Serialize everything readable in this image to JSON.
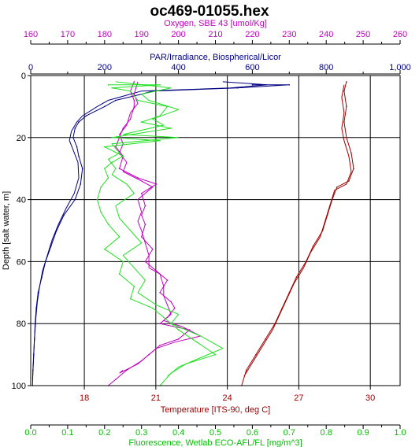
{
  "chart_data": {
    "type": "line",
    "title": "oc469-01055.hex",
    "grid": true,
    "y_axis": {
      "label": "Depth [salt water, m]",
      "range": [
        0,
        100
      ],
      "inverted": true,
      "ticks": [
        "0",
        "20",
        "40",
        "60",
        "80",
        "100"
      ],
      "tick_values": [
        0,
        20,
        40,
        60,
        80,
        100
      ]
    },
    "x_axes": [
      {
        "id": "oxygen",
        "label": "Oxygen, SBE 43 [umol/Kg]",
        "position": "top",
        "color": "#c000c0",
        "range": [
          160,
          260
        ],
        "ticks": [
          "160",
          "170",
          "180",
          "190",
          "200",
          "210",
          "220",
          "230",
          "240",
          "250",
          "260"
        ],
        "tick_values": [
          160,
          170,
          180,
          190,
          200,
          210,
          220,
          230,
          240,
          250,
          260
        ]
      },
      {
        "id": "par",
        "label": "PAR/Irradiance, Biospherical/Licor",
        "position": "top",
        "color": "#000080",
        "range": [
          0,
          1000
        ],
        "ticks": [
          "0",
          "200",
          "400",
          "600",
          "800",
          "1,000"
        ],
        "tick_values": [
          0,
          200,
          400,
          600,
          800,
          1000
        ]
      },
      {
        "id": "temperature",
        "label": "Temperature [ITS-90, deg C]",
        "position": "bottom",
        "color": "#a00000",
        "range": [
          15.75,
          31.25
        ],
        "ticks": [
          "18",
          "21",
          "24",
          "27",
          "30"
        ],
        "tick_values": [
          18,
          21,
          24,
          27,
          30
        ]
      },
      {
        "id": "fluorescence",
        "label": "Fluorescence, Wetlab ECO-AFL/FL [mg/m^3]",
        "position": "bottom",
        "color": "#00c000",
        "range": [
          0,
          1
        ],
        "ticks": [
          "0.0",
          "0.1",
          "0.2",
          "0.3",
          "0.4",
          "0.5",
          "0.6",
          "0.7",
          "0.8",
          "0.9",
          "1.0"
        ],
        "tick_values": [
          0,
          0.1,
          0.2,
          0.3,
          0.4,
          0.5,
          0.6,
          0.7,
          0.8,
          0.9,
          1.0
        ]
      }
    ],
    "series": [
      {
        "axis": "par",
        "color": "#000080",
        "points": [
          [
            600,
            3
          ],
          [
            700,
            3
          ],
          [
            560,
            4
          ],
          [
            330,
            5
          ],
          [
            300,
            6
          ],
          [
            230,
            8
          ],
          [
            200,
            10
          ],
          [
            150,
            13
          ],
          [
            130,
            15
          ],
          [
            120,
            17
          ],
          [
            115,
            20
          ],
          [
            125,
            23
          ],
          [
            130,
            26
          ],
          [
            140,
            30
          ],
          [
            135,
            35
          ],
          [
            120,
            40
          ],
          [
            90,
            45
          ],
          [
            70,
            50
          ],
          [
            55,
            55
          ],
          [
            40,
            60
          ],
          [
            30,
            65
          ],
          [
            20,
            70
          ],
          [
            15,
            75
          ],
          [
            12,
            80
          ],
          [
            10,
            85
          ],
          [
            8,
            90
          ],
          [
            6,
            95
          ],
          [
            5,
            100
          ]
        ],
        "points_alt": [
          [
            520,
            2
          ],
          [
            640,
            3
          ],
          [
            540,
            4
          ],
          [
            300,
            5
          ],
          [
            270,
            6
          ],
          [
            210,
            8
          ],
          [
            180,
            10
          ],
          [
            140,
            13
          ],
          [
            125,
            15
          ],
          [
            110,
            18
          ],
          [
            105,
            21
          ],
          [
            115,
            24
          ],
          [
            128,
            28
          ],
          [
            130,
            33
          ],
          [
            118,
            38
          ],
          [
            95,
            43
          ],
          [
            75,
            48
          ],
          [
            58,
            53
          ],
          [
            45,
            58
          ],
          [
            32,
            63
          ],
          [
            24,
            68
          ],
          [
            18,
            73
          ],
          [
            14,
            78
          ],
          [
            11,
            83
          ],
          [
            9,
            88
          ],
          [
            7,
            93
          ],
          [
            5,
            98
          ]
        ]
      },
      {
        "axis": "oxygen",
        "color": "#c000c0",
        "points": [
          [
            188,
            2
          ],
          [
            187,
            5
          ],
          [
            188,
            8
          ],
          [
            188,
            10
          ],
          [
            187,
            14
          ],
          [
            185,
            17
          ],
          [
            184,
            20
          ],
          [
            183,
            23
          ],
          [
            185,
            26
          ],
          [
            184,
            30
          ],
          [
            189,
            33
          ],
          [
            194,
            35
          ],
          [
            190,
            38
          ],
          [
            191,
            42
          ],
          [
            190,
            45
          ],
          [
            191,
            48
          ],
          [
            190,
            52
          ],
          [
            193,
            56
          ],
          [
            191,
            60
          ],
          [
            194,
            63
          ],
          [
            197,
            66
          ],
          [
            195,
            70
          ],
          [
            198,
            73
          ],
          [
            199,
            75
          ],
          [
            197,
            78
          ],
          [
            195,
            80
          ],
          [
            203,
            82
          ],
          [
            200,
            85
          ],
          [
            195,
            87
          ],
          [
            192,
            90
          ],
          [
            190,
            92
          ],
          [
            186,
            95
          ],
          [
            183,
            98
          ],
          [
            181,
            100
          ]
        ],
        "points_alt": [
          [
            189,
            2
          ],
          [
            188,
            6
          ],
          [
            189,
            9
          ],
          [
            187,
            12
          ],
          [
            186,
            16
          ],
          [
            184,
            19
          ],
          [
            185,
            22
          ],
          [
            184,
            25
          ],
          [
            186,
            28
          ],
          [
            185,
            31
          ],
          [
            190,
            34
          ],
          [
            193,
            36
          ],
          [
            189,
            40
          ],
          [
            190,
            44
          ],
          [
            189,
            47
          ],
          [
            190,
            50
          ],
          [
            191,
            54
          ],
          [
            192,
            58
          ],
          [
            192,
            62
          ],
          [
            195,
            64
          ],
          [
            196,
            68
          ],
          [
            196,
            71
          ],
          [
            197,
            74
          ],
          [
            198,
            77
          ],
          [
            196,
            79
          ],
          [
            201,
            81
          ],
          [
            206,
            84
          ],
          [
            199,
            86
          ],
          [
            194,
            88
          ],
          [
            191,
            91
          ],
          [
            189,
            93
          ],
          [
            184,
            96
          ],
          [
            185,
            95
          ]
        ]
      },
      {
        "axis": "fluorescence",
        "color": "#20e020",
        "points": [
          [
            0.21,
            3
          ],
          [
            0.35,
            3
          ],
          [
            0.22,
            4
          ],
          [
            0.27,
            5
          ],
          [
            0.29,
            8
          ],
          [
            0.37,
            10
          ],
          [
            0.35,
            13
          ],
          [
            0.3,
            15
          ],
          [
            0.38,
            17
          ],
          [
            0.22,
            20
          ],
          [
            0.35,
            21
          ],
          [
            0.2,
            23
          ],
          [
            0.25,
            26
          ],
          [
            0.22,
            28
          ],
          [
            0.2,
            30
          ],
          [
            0.21,
            33
          ],
          [
            0.19,
            36
          ],
          [
            0.18,
            40
          ],
          [
            0.19,
            44
          ],
          [
            0.21,
            48
          ],
          [
            0.24,
            52
          ],
          [
            0.2,
            56
          ],
          [
            0.25,
            60
          ],
          [
            0.24,
            64
          ],
          [
            0.28,
            68
          ],
          [
            0.27,
            72
          ],
          [
            0.33,
            75
          ],
          [
            0.36,
            78
          ],
          [
            0.4,
            82
          ],
          [
            0.45,
            86
          ],
          [
            0.5,
            90
          ],
          [
            0.42,
            93
          ],
          [
            0.38,
            96
          ],
          [
            0.35,
            100
          ]
        ],
        "points_alt": [
          [
            0.23,
            2
          ],
          [
            0.38,
            4
          ],
          [
            0.3,
            6
          ],
          [
            0.32,
            8
          ],
          [
            0.4,
            11
          ],
          [
            0.33,
            14
          ],
          [
            0.36,
            16
          ],
          [
            0.25,
            19
          ],
          [
            0.4,
            20
          ],
          [
            0.22,
            22
          ],
          [
            0.24,
            25
          ],
          [
            0.21,
            27
          ],
          [
            0.23,
            30
          ],
          [
            0.22,
            32
          ],
          [
            0.26,
            35
          ],
          [
            0.28,
            38
          ],
          [
            0.23,
            42
          ],
          [
            0.24,
            46
          ],
          [
            0.27,
            50
          ],
          [
            0.3,
            54
          ],
          [
            0.25,
            58
          ],
          [
            0.28,
            62
          ],
          [
            0.31,
            66
          ],
          [
            0.29,
            70
          ],
          [
            0.34,
            74
          ],
          [
            0.4,
            77
          ],
          [
            0.38,
            80
          ],
          [
            0.46,
            84
          ],
          [
            0.52,
            88
          ],
          [
            0.46,
            91
          ],
          [
            0.4,
            94
          ],
          [
            0.37,
            97
          ]
        ]
      },
      {
        "axis": "temperature",
        "color": "#a00000",
        "points": [
          [
            29.0,
            2
          ],
          [
            28.9,
            5
          ],
          [
            29.0,
            10
          ],
          [
            28.9,
            15
          ],
          [
            29.0,
            20
          ],
          [
            29.2,
            25
          ],
          [
            29.3,
            30
          ],
          [
            29.1,
            34
          ],
          [
            28.6,
            36
          ],
          [
            28.4,
            40
          ],
          [
            28.2,
            45
          ],
          [
            28.0,
            50
          ],
          [
            27.6,
            55
          ],
          [
            27.3,
            60
          ],
          [
            26.9,
            65
          ],
          [
            26.6,
            70
          ],
          [
            26.3,
            75
          ],
          [
            26.0,
            80
          ],
          [
            25.6,
            85
          ],
          [
            25.2,
            90
          ],
          [
            24.8,
            95
          ],
          [
            24.6,
            100
          ]
        ],
        "points_alt": [
          [
            28.9,
            3
          ],
          [
            28.8,
            7
          ],
          [
            28.9,
            12
          ],
          [
            28.8,
            17
          ],
          [
            28.9,
            21
          ],
          [
            29.1,
            26
          ],
          [
            29.2,
            31
          ],
          [
            29.0,
            35
          ],
          [
            28.5,
            37
          ],
          [
            28.3,
            42
          ],
          [
            28.1,
            47
          ],
          [
            27.9,
            52
          ],
          [
            27.5,
            57
          ],
          [
            27.2,
            62
          ],
          [
            26.8,
            67
          ],
          [
            26.5,
            72
          ],
          [
            26.2,
            77
          ],
          [
            25.9,
            82
          ],
          [
            25.5,
            87
          ],
          [
            25.1,
            92
          ],
          [
            24.7,
            97
          ]
        ]
      }
    ]
  }
}
